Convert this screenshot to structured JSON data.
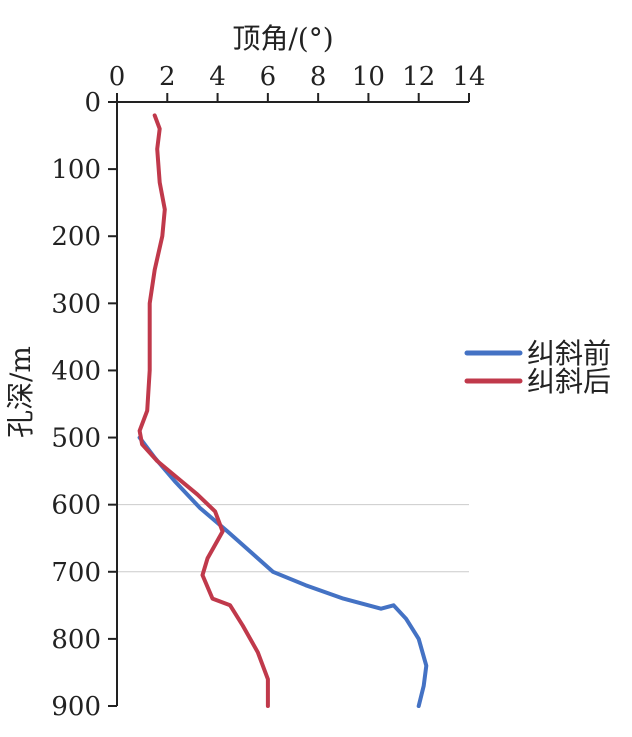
{
  "chart_data": {
    "type": "line",
    "xlabel": "顶角/(°)",
    "ylabel": "孔深/m",
    "xlim": [
      0,
      14
    ],
    "ylim": [
      0,
      900
    ],
    "xticks": [
      "0",
      "2",
      "4",
      "6",
      "8",
      "10",
      "12",
      "14"
    ],
    "yticks": [
      "0",
      "100",
      "200",
      "300",
      "400",
      "500",
      "600",
      "700",
      "800",
      "900"
    ],
    "x_axis_position": "top",
    "y_axis_inverted": true,
    "grid": "horizontal lines at 600 and 700 only",
    "legend_position": "right",
    "series": [
      {
        "name": "纠斜前",
        "color": "#4472C4",
        "points": [
          [
            0.9,
            500
          ],
          [
            1.5,
            530
          ],
          [
            2.3,
            565
          ],
          [
            3.3,
            605
          ],
          [
            4.4,
            640
          ],
          [
            5.3,
            670
          ],
          [
            6.2,
            700
          ],
          [
            7.5,
            720
          ],
          [
            9.0,
            740
          ],
          [
            10.5,
            755
          ],
          [
            11.0,
            750
          ],
          [
            11.5,
            770
          ],
          [
            12.0,
            800
          ],
          [
            12.3,
            840
          ],
          [
            12.2,
            870
          ],
          [
            12.0,
            900
          ]
        ]
      },
      {
        "name": "纠斜后",
        "color": "#C0394B",
        "points": [
          [
            1.5,
            20
          ],
          [
            1.7,
            40
          ],
          [
            1.6,
            70
          ],
          [
            1.7,
            120
          ],
          [
            1.9,
            160
          ],
          [
            1.8,
            200
          ],
          [
            1.5,
            250
          ],
          [
            1.3,
            300
          ],
          [
            1.3,
            350
          ],
          [
            1.3,
            400
          ],
          [
            1.2,
            460
          ],
          [
            0.9,
            490
          ],
          [
            1.0,
            510
          ],
          [
            1.6,
            535
          ],
          [
            2.4,
            560
          ],
          [
            3.2,
            585
          ],
          [
            3.9,
            610
          ],
          [
            4.2,
            640
          ],
          [
            3.6,
            680
          ],
          [
            3.4,
            705
          ],
          [
            3.8,
            740
          ],
          [
            4.5,
            750
          ],
          [
            5.0,
            780
          ],
          [
            5.6,
            820
          ],
          [
            6.0,
            860
          ],
          [
            6.0,
            900
          ]
        ]
      }
    ]
  }
}
